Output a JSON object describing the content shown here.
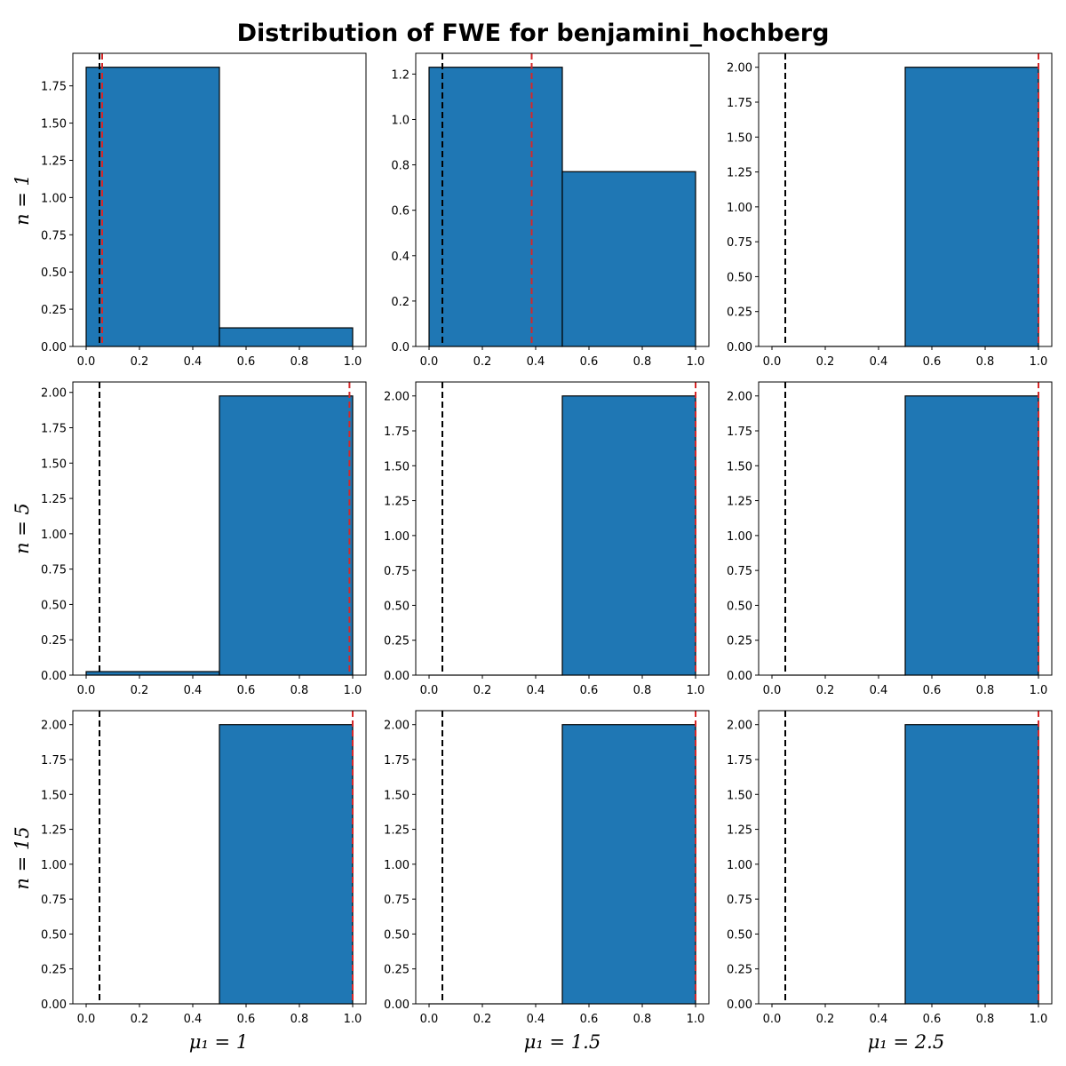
{
  "title": "Distribution of FWE for benjamini_hochberg",
  "row_labels": [
    "n = 1",
    "n = 5",
    "n = 15"
  ],
  "col_labels": [
    "μ₁ = 1",
    "μ₁ = 1.5",
    "μ₁ = 2.5"
  ],
  "colors": {
    "bar_fill": "#1f77b4",
    "bar_edge": "#000000",
    "alpha_line": "#000000",
    "mean_line": "#d62728"
  },
  "reference_line": {
    "label": "alpha",
    "x": 0.05,
    "color": "#000000",
    "style": "dashed"
  },
  "chart_data": [
    {
      "type": "bar",
      "panel": "n=1, mu1=1",
      "bins": [
        [
          0,
          0.5
        ],
        [
          0.5,
          1.0
        ]
      ],
      "values": [
        1.875,
        0.125
      ],
      "alpha_x": 0.05,
      "mean_x": 0.06,
      "xlim": [
        -0.05,
        1.05
      ],
      "ylim": [
        0,
        1.96875
      ],
      "yticks": [
        "0.00",
        "0.25",
        "0.50",
        "0.75",
        "1.00",
        "1.25",
        "1.50",
        "1.75"
      ],
      "xticks": [
        "0.0",
        "0.2",
        "0.4",
        "0.6",
        "0.8",
        "1.0"
      ]
    },
    {
      "type": "bar",
      "panel": "n=1, mu1=1.5",
      "bins": [
        [
          0,
          0.5
        ],
        [
          0.5,
          1.0
        ]
      ],
      "values": [
        1.23,
        0.77
      ],
      "alpha_x": 0.05,
      "mean_x": 0.385,
      "xlim": [
        -0.05,
        1.05
      ],
      "ylim": [
        0,
        1.2915
      ],
      "yticks": [
        "0.0",
        "0.2",
        "0.4",
        "0.6",
        "0.8",
        "1.0",
        "1.2"
      ],
      "xticks": [
        "0.0",
        "0.2",
        "0.4",
        "0.6",
        "0.8",
        "1.0"
      ]
    },
    {
      "type": "bar",
      "panel": "n=1, mu1=2.5",
      "bins": [
        [
          0,
          0.5
        ],
        [
          0.5,
          1.0
        ]
      ],
      "values": [
        0.0,
        2.0
      ],
      "alpha_x": 0.05,
      "mean_x": 1.0,
      "xlim": [
        -0.05,
        1.05
      ],
      "ylim": [
        0,
        2.1
      ],
      "yticks": [
        "0.00",
        "0.25",
        "0.50",
        "0.75",
        "1.00",
        "1.25",
        "1.50",
        "1.75",
        "2.00"
      ],
      "xticks": [
        "0.0",
        "0.2",
        "0.4",
        "0.6",
        "0.8",
        "1.0"
      ]
    },
    {
      "type": "bar",
      "panel": "n=5, mu1=1",
      "bins": [
        [
          0,
          0.5
        ],
        [
          0.5,
          1.0
        ]
      ],
      "values": [
        0.025,
        1.975
      ],
      "alpha_x": 0.05,
      "mean_x": 0.988,
      "xlim": [
        -0.05,
        1.05
      ],
      "ylim": [
        0,
        2.07375
      ],
      "yticks": [
        "0.00",
        "0.25",
        "0.50",
        "0.75",
        "1.00",
        "1.25",
        "1.50",
        "1.75",
        "2.00"
      ],
      "xticks": [
        "0.0",
        "0.2",
        "0.4",
        "0.6",
        "0.8",
        "1.0"
      ]
    },
    {
      "type": "bar",
      "panel": "n=5, mu1=1.5",
      "bins": [
        [
          0,
          0.5
        ],
        [
          0.5,
          1.0
        ]
      ],
      "values": [
        0.0,
        2.0
      ],
      "alpha_x": 0.05,
      "mean_x": 1.0,
      "xlim": [
        -0.05,
        1.05
      ],
      "ylim": [
        0,
        2.1
      ],
      "yticks": [
        "0.00",
        "0.25",
        "0.50",
        "0.75",
        "1.00",
        "1.25",
        "1.50",
        "1.75",
        "2.00"
      ],
      "xticks": [
        "0.0",
        "0.2",
        "0.4",
        "0.6",
        "0.8",
        "1.0"
      ]
    },
    {
      "type": "bar",
      "panel": "n=5, mu1=2.5",
      "bins": [
        [
          0,
          0.5
        ],
        [
          0.5,
          1.0
        ]
      ],
      "values": [
        0.0,
        2.0
      ],
      "alpha_x": 0.05,
      "mean_x": 1.0,
      "xlim": [
        -0.05,
        1.05
      ],
      "ylim": [
        0,
        2.1
      ],
      "yticks": [
        "0.00",
        "0.25",
        "0.50",
        "0.75",
        "1.00",
        "1.25",
        "1.50",
        "1.75",
        "2.00"
      ],
      "xticks": [
        "0.0",
        "0.2",
        "0.4",
        "0.6",
        "0.8",
        "1.0"
      ]
    },
    {
      "type": "bar",
      "panel": "n=15, mu1=1",
      "bins": [
        [
          0,
          0.5
        ],
        [
          0.5,
          1.0
        ]
      ],
      "values": [
        0.0,
        2.0
      ],
      "alpha_x": 0.05,
      "mean_x": 1.0,
      "xlim": [
        -0.05,
        1.05
      ],
      "ylim": [
        0,
        2.1
      ],
      "yticks": [
        "0.00",
        "0.25",
        "0.50",
        "0.75",
        "1.00",
        "1.25",
        "1.50",
        "1.75",
        "2.00"
      ],
      "xticks": [
        "0.0",
        "0.2",
        "0.4",
        "0.6",
        "0.8",
        "1.0"
      ]
    },
    {
      "type": "bar",
      "panel": "n=15, mu1=1.5",
      "bins": [
        [
          0,
          0.5
        ],
        [
          0.5,
          1.0
        ]
      ],
      "values": [
        0.0,
        2.0
      ],
      "alpha_x": 0.05,
      "mean_x": 1.0,
      "xlim": [
        -0.05,
        1.05
      ],
      "ylim": [
        0,
        2.1
      ],
      "yticks": [
        "0.00",
        "0.25",
        "0.50",
        "0.75",
        "1.00",
        "1.25",
        "1.50",
        "1.75",
        "2.00"
      ],
      "xticks": [
        "0.0",
        "0.2",
        "0.4",
        "0.6",
        "0.8",
        "1.0"
      ]
    },
    {
      "type": "bar",
      "panel": "n=15, mu1=2.5",
      "bins": [
        [
          0,
          0.5
        ],
        [
          0.5,
          1.0
        ]
      ],
      "values": [
        0.0,
        2.0
      ],
      "alpha_x": 0.05,
      "mean_x": 1.0,
      "xlim": [
        -0.05,
        1.05
      ],
      "ylim": [
        0,
        2.1
      ],
      "yticks": [
        "0.00",
        "0.25",
        "0.50",
        "0.75",
        "1.00",
        "1.25",
        "1.50",
        "1.75",
        "2.00"
      ],
      "xticks": [
        "0.0",
        "0.2",
        "0.4",
        "0.6",
        "0.8",
        "1.0"
      ]
    }
  ]
}
